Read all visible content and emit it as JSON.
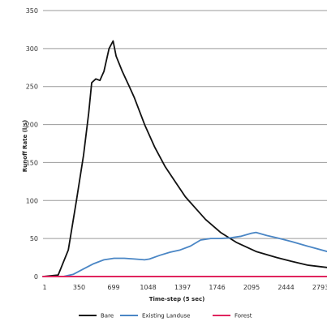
{
  "chart_data": {
    "type": "line",
    "xlabel": "Time-step (5 sec)",
    "ylabel": "Runoff Rate (l/s)",
    "x_ticks": [
      "1",
      "350",
      "699",
      "1048",
      "1397",
      "1746",
      "2095",
      "2444",
      "2793"
    ],
    "ylim": [
      0,
      350
    ],
    "y_ticks": [
      0,
      50,
      100,
      150,
      200,
      250,
      300,
      350
    ],
    "xlim": [
      1,
      2793
    ],
    "grid": "horizontal",
    "legend_position": "bottom",
    "series": [
      {
        "name": "Bare",
        "color": "#111111",
        "points": [
          [
            1,
            0
          ],
          [
            150,
            2
          ],
          [
            250,
            35
          ],
          [
            330,
            100
          ],
          [
            400,
            160
          ],
          [
            450,
            215
          ],
          [
            480,
            255
          ],
          [
            520,
            260
          ],
          [
            560,
            258
          ],
          [
            600,
            270
          ],
          [
            650,
            300
          ],
          [
            690,
            310
          ],
          [
            720,
            290
          ],
          [
            780,
            270
          ],
          [
            850,
            250
          ],
          [
            900,
            235
          ],
          [
            1000,
            200
          ],
          [
            1100,
            170
          ],
          [
            1200,
            145
          ],
          [
            1300,
            125
          ],
          [
            1400,
            105
          ],
          [
            1500,
            90
          ],
          [
            1600,
            75
          ],
          [
            1746,
            58
          ],
          [
            1900,
            45
          ],
          [
            2095,
            33
          ],
          [
            2300,
            25
          ],
          [
            2444,
            20
          ],
          [
            2600,
            15
          ],
          [
            2793,
            12
          ]
        ]
      },
      {
        "name": "Existing Landuse",
        "color": "#4a86c5",
        "points": [
          [
            1,
            0
          ],
          [
            200,
            0
          ],
          [
            300,
            3
          ],
          [
            400,
            10
          ],
          [
            500,
            17
          ],
          [
            600,
            22
          ],
          [
            699,
            24
          ],
          [
            800,
            24
          ],
          [
            900,
            23
          ],
          [
            1000,
            22
          ],
          [
            1048,
            23
          ],
          [
            1150,
            28
          ],
          [
            1250,
            32
          ],
          [
            1350,
            35
          ],
          [
            1450,
            40
          ],
          [
            1550,
            48
          ],
          [
            1650,
            50
          ],
          [
            1746,
            50
          ],
          [
            1850,
            51
          ],
          [
            1950,
            53
          ],
          [
            2050,
            57
          ],
          [
            2095,
            58
          ],
          [
            2200,
            54
          ],
          [
            2300,
            51
          ],
          [
            2444,
            46
          ],
          [
            2600,
            40
          ],
          [
            2793,
            33
          ]
        ]
      },
      {
        "name": "Forest",
        "color": "#e0245e",
        "points": [
          [
            1,
            0
          ],
          [
            2793,
            0
          ]
        ]
      }
    ]
  }
}
